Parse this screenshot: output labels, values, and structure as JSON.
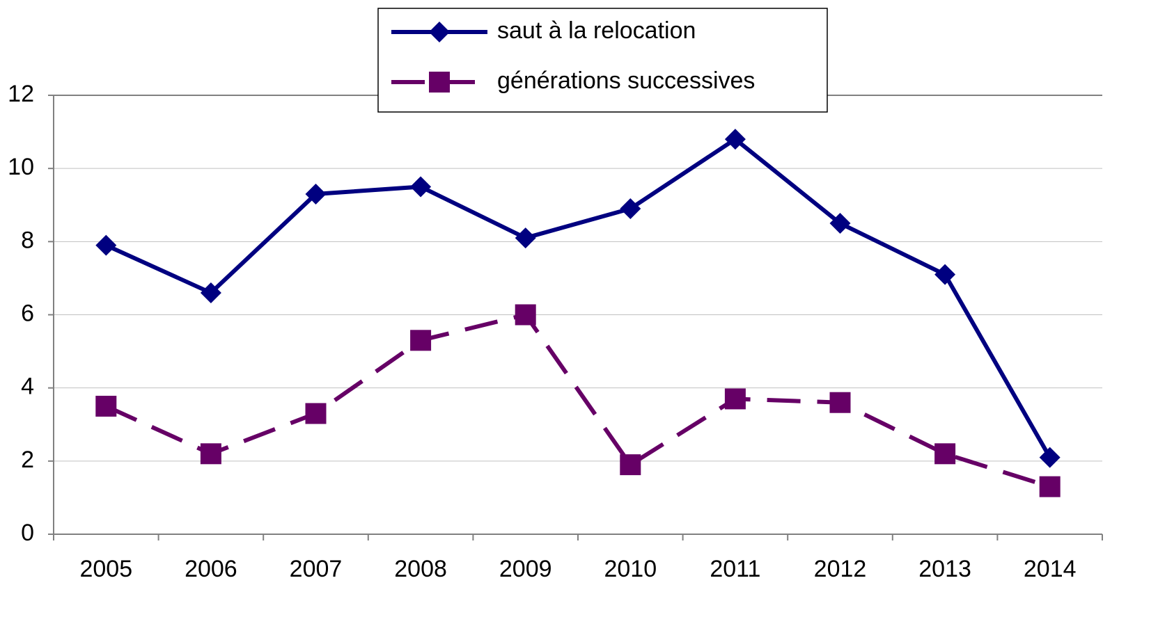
{
  "chart_data": {
    "type": "line",
    "categories": [
      "2005",
      "2006",
      "2007",
      "2008",
      "2009",
      "2010",
      "2011",
      "2012",
      "2013",
      "2014"
    ],
    "series": [
      {
        "name": "saut à la relocation",
        "color": "#000080",
        "dash": "solid",
        "marker": "diamond",
        "values": [
          7.9,
          6.6,
          9.3,
          9.5,
          8.1,
          8.9,
          10.8,
          8.5,
          7.1,
          2.1
        ]
      },
      {
        "name": "générations successives",
        "color": "#660066",
        "dash": "dashed",
        "marker": "square",
        "values": [
          3.5,
          2.2,
          3.3,
          5.3,
          6.0,
          1.9,
          3.7,
          3.6,
          2.2,
          1.3
        ]
      }
    ],
    "ylim": [
      0,
      12
    ],
    "yticks": [
      0,
      2,
      4,
      6,
      8,
      10,
      12
    ],
    "grid": true,
    "legend": "top"
  }
}
